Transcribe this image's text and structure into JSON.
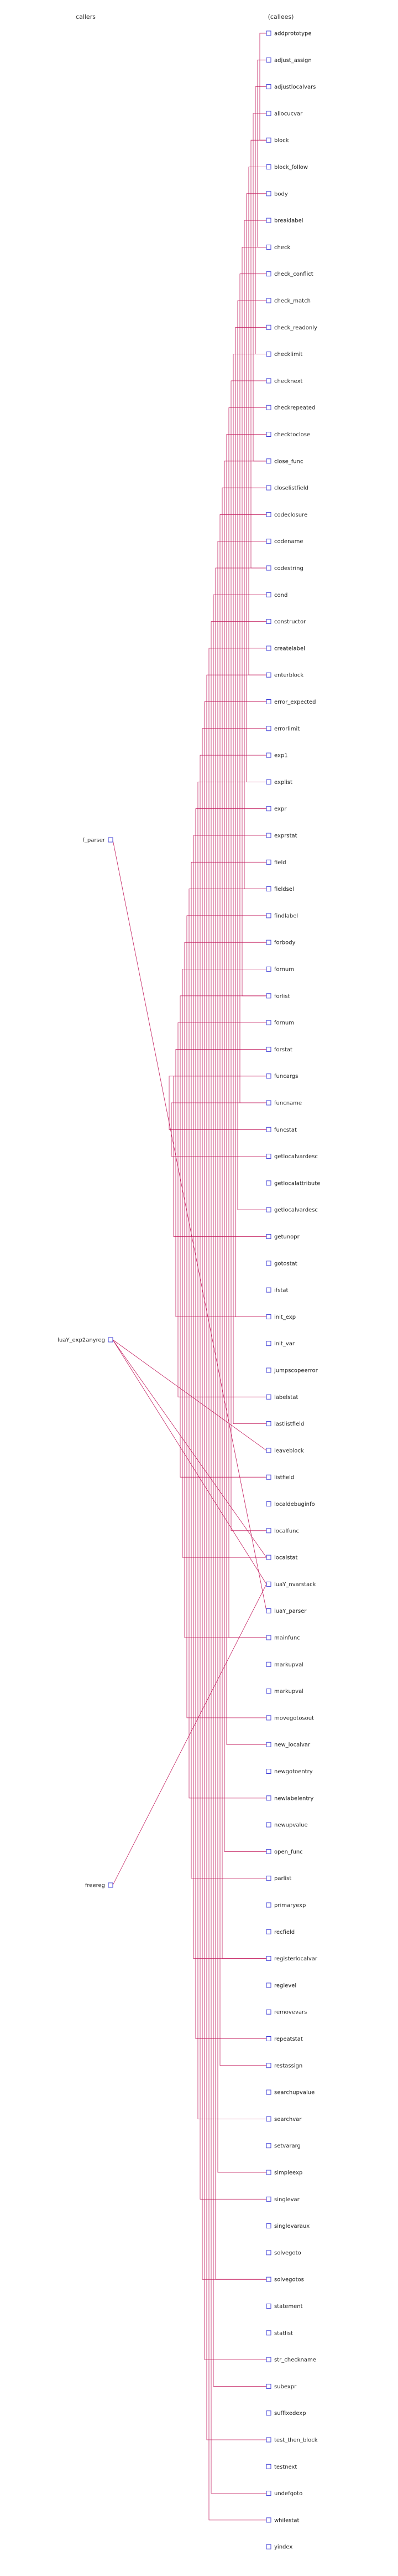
{
  "headers": {
    "callers": "callers",
    "callees": "(callees)"
  },
  "callers": [
    "f_parser",
    "luaY_exp2anyreg",
    "freereg"
  ],
  "callees": [
    "addprototype",
    "adjust_assign",
    "adjustlocalvars",
    "allocucvar",
    "block",
    "block_follow",
    "body",
    "breaklabel",
    "check",
    "check_conflict",
    "check_match",
    "check_readonly",
    "checklimit",
    "checknext",
    "checkrepeated",
    "checktoclose",
    "close_func",
    "closelistfield",
    "codeclosure",
    "codename",
    "codestring",
    "cond",
    "constructor",
    "createlabel",
    "enterblock",
    "error_expected",
    "errorlimit",
    "exp1",
    "explist",
    "expr",
    "exprstat",
    "field",
    "fieldsel",
    "findlabel",
    "forbody",
    "fornum",
    "forlist",
    "fornum",
    "forstat",
    "funcargs",
    "funcname",
    "funcstat",
    "getlocalvardesc",
    "getlocalattribute",
    "getlocalvardesc",
    "getunopr",
    "gotostat",
    "ifstat",
    "init_exp",
    "init_var",
    "jumpscopeerror",
    "labelstat",
    "lastlistfield",
    "leaveblock",
    "listfield",
    "localdebuginfo",
    "localfunc",
    "localstat",
    "luaY_nvarstack",
    "luaY_parser",
    "mainfunc",
    "markupval",
    "markupval",
    "movegotosout",
    "new_localvar",
    "newgotoentry",
    "newlabelentry",
    "newupvalue",
    "open_func",
    "parlist",
    "primaryexp",
    "recfield",
    "registerlocalvar",
    "reglevel",
    "removevars",
    "repeatstat",
    "restassign",
    "searchupvalue",
    "searchvar",
    "setvararg",
    "simpleexp",
    "singlevar",
    "singlevaraux",
    "solvegoto",
    "solvegotos",
    "statement",
    "statlist",
    "str_checkname",
    "subexpr",
    "suffixedexp",
    "test_then_block",
    "testnext",
    "undefgoto",
    "whilestat",
    "yindex"
  ],
  "colors": {
    "edge": "#c2185b",
    "node_border": "#3b3bd6"
  }
}
